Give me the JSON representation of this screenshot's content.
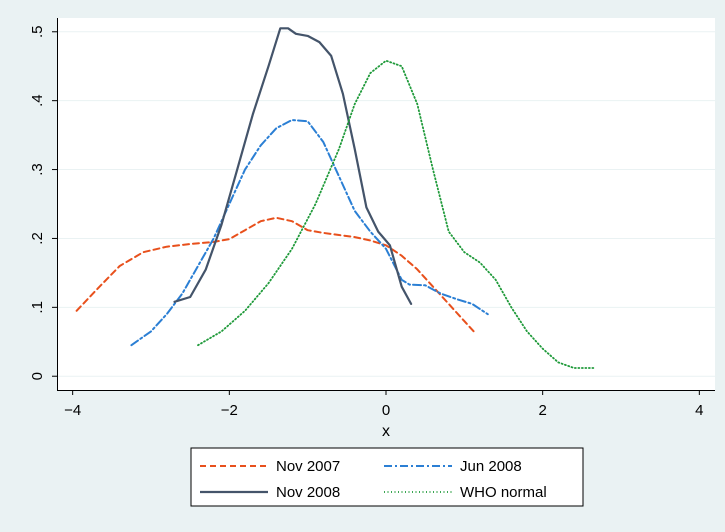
{
  "chart_data": {
    "type": "line",
    "title": "",
    "xlabel": "x",
    "ylabel": "",
    "xlim": [
      -4.2,
      4.2
    ],
    "ylim": [
      -0.02,
      0.52
    ],
    "x_ticks": [
      -4,
      -2,
      0,
      2,
      4
    ],
    "x_tick_labels": [
      "−4",
      "−2",
      "0",
      "2",
      "4"
    ],
    "y_ticks": [
      0,
      0.1,
      0.2,
      0.3,
      0.4,
      0.5
    ],
    "y_tick_labels": [
      "0",
      ".1",
      ".2",
      ".3",
      ".4",
      ".5"
    ],
    "grid": "horizontal",
    "legend_position": "bottom",
    "series": [
      {
        "name": "Nov 2007",
        "color": "#e8501c",
        "dash": "6,4",
        "width": 2,
        "points": [
          [
            -3.95,
            0.095
          ],
          [
            -3.7,
            0.125
          ],
          [
            -3.4,
            0.16
          ],
          [
            -3.1,
            0.18
          ],
          [
            -2.8,
            0.188
          ],
          [
            -2.5,
            0.192
          ],
          [
            -2.2,
            0.195
          ],
          [
            -2.0,
            0.199
          ],
          [
            -1.8,
            0.212
          ],
          [
            -1.6,
            0.225
          ],
          [
            -1.4,
            0.23
          ],
          [
            -1.2,
            0.225
          ],
          [
            -1.0,
            0.212
          ],
          [
            -0.8,
            0.208
          ],
          [
            -0.6,
            0.205
          ],
          [
            -0.4,
            0.202
          ],
          [
            -0.2,
            0.197
          ],
          [
            0.0,
            0.19
          ],
          [
            0.2,
            0.175
          ],
          [
            0.4,
            0.155
          ],
          [
            0.6,
            0.13
          ],
          [
            0.8,
            0.105
          ],
          [
            1.0,
            0.08
          ],
          [
            1.12,
            0.065
          ]
        ]
      },
      {
        "name": "Jun 2008",
        "color": "#2b7fd4",
        "dash": "8,3,2,3",
        "width": 2,
        "points": [
          [
            -3.25,
            0.045
          ],
          [
            -3.0,
            0.065
          ],
          [
            -2.8,
            0.09
          ],
          [
            -2.6,
            0.12
          ],
          [
            -2.4,
            0.16
          ],
          [
            -2.2,
            0.2
          ],
          [
            -2.0,
            0.25
          ],
          [
            -1.8,
            0.3
          ],
          [
            -1.6,
            0.335
          ],
          [
            -1.4,
            0.36
          ],
          [
            -1.2,
            0.372
          ],
          [
            -1.0,
            0.37
          ],
          [
            -0.8,
            0.34
          ],
          [
            -0.6,
            0.29
          ],
          [
            -0.4,
            0.24
          ],
          [
            -0.2,
            0.21
          ],
          [
            0.0,
            0.185
          ],
          [
            0.2,
            0.14
          ],
          [
            0.3,
            0.133
          ],
          [
            0.5,
            0.132
          ],
          [
            0.7,
            0.12
          ],
          [
            0.9,
            0.112
          ],
          [
            1.1,
            0.105
          ],
          [
            1.3,
            0.09
          ]
        ]
      },
      {
        "name": "Nov 2008",
        "color": "#44546a",
        "dash": "",
        "width": 2.2,
        "points": [
          [
            -2.7,
            0.108
          ],
          [
            -2.5,
            0.115
          ],
          [
            -2.3,
            0.155
          ],
          [
            -2.1,
            0.22
          ],
          [
            -1.9,
            0.3
          ],
          [
            -1.7,
            0.38
          ],
          [
            -1.5,
            0.45
          ],
          [
            -1.35,
            0.505
          ],
          [
            -1.25,
            0.505
          ],
          [
            -1.15,
            0.497
          ],
          [
            -1.0,
            0.494
          ],
          [
            -0.85,
            0.485
          ],
          [
            -0.7,
            0.465
          ],
          [
            -0.55,
            0.41
          ],
          [
            -0.4,
            0.33
          ],
          [
            -0.25,
            0.245
          ],
          [
            -0.1,
            0.21
          ],
          [
            0.05,
            0.19
          ],
          [
            0.2,
            0.13
          ],
          [
            0.32,
            0.105
          ]
        ]
      },
      {
        "name": "WHO normal",
        "color": "#1f9a3a",
        "dash": "1,2.5",
        "width": 1.8,
        "points": [
          [
            -2.4,
            0.045
          ],
          [
            -2.1,
            0.065
          ],
          [
            -1.8,
            0.095
          ],
          [
            -1.5,
            0.135
          ],
          [
            -1.2,
            0.185
          ],
          [
            -0.9,
            0.25
          ],
          [
            -0.6,
            0.33
          ],
          [
            -0.4,
            0.395
          ],
          [
            -0.2,
            0.44
          ],
          [
            0.0,
            0.458
          ],
          [
            0.2,
            0.45
          ],
          [
            0.4,
            0.395
          ],
          [
            0.6,
            0.3
          ],
          [
            0.8,
            0.21
          ],
          [
            1.0,
            0.18
          ],
          [
            1.2,
            0.165
          ],
          [
            1.4,
            0.14
          ],
          [
            1.6,
            0.1
          ],
          [
            1.8,
            0.065
          ],
          [
            2.0,
            0.04
          ],
          [
            2.2,
            0.02
          ],
          [
            2.4,
            0.012
          ],
          [
            2.65,
            0.012
          ]
        ]
      }
    ]
  }
}
